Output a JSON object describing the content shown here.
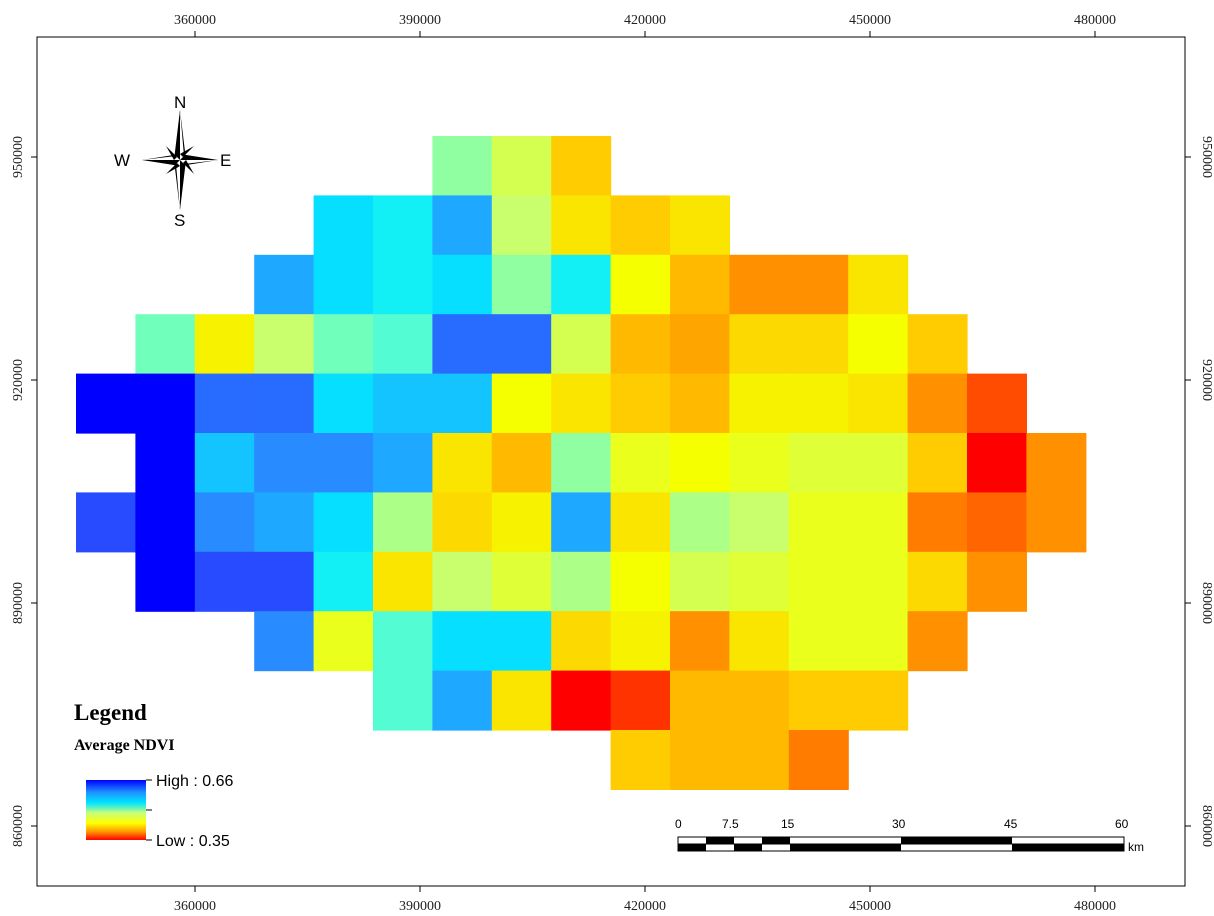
{
  "map": {
    "x_ticks": [
      "360000",
      "390000",
      "420000",
      "450000",
      "480000"
    ],
    "y_ticks": [
      "950000",
      "920000",
      "890000",
      "860000"
    ],
    "grid": {
      "note_cell_values": "NDVI estimated from color ramp (0.35 low/red to 0.66 high/blue); null = no data",
      "rows": [
        [
          null,
          null,
          null,
          null,
          null,
          null,
          0.54,
          0.51,
          0.44,
          null,
          null,
          null,
          null,
          null,
          null,
          null,
          null
        ],
        [
          null,
          null,
          null,
          null,
          0.59,
          0.58,
          0.61,
          0.52,
          0.46,
          0.44,
          0.46,
          null,
          null,
          null,
          null,
          null,
          null
        ],
        [
          null,
          null,
          null,
          0.61,
          0.59,
          0.58,
          0.59,
          0.54,
          0.58,
          0.48,
          0.43,
          0.41,
          0.41,
          0.46,
          null,
          null,
          null
        ],
        [
          null,
          0.55,
          0.47,
          0.52,
          0.55,
          0.56,
          0.63,
          0.63,
          0.51,
          0.43,
          0.42,
          0.45,
          0.45,
          0.48,
          0.44,
          null,
          null
        ],
        [
          0.66,
          0.66,
          0.63,
          0.63,
          0.59,
          0.6,
          0.6,
          0.48,
          0.46,
          0.44,
          0.43,
          0.47,
          0.47,
          0.46,
          0.41,
          0.38,
          null
        ],
        [
          null,
          0.66,
          0.6,
          0.62,
          0.62,
          0.61,
          0.46,
          0.43,
          0.54,
          0.49,
          0.48,
          0.49,
          0.5,
          0.5,
          0.44,
          0.35,
          0.41
        ],
        [
          0.64,
          0.66,
          0.62,
          0.61,
          0.59,
          0.53,
          0.45,
          0.47,
          0.61,
          0.46,
          0.53,
          0.52,
          0.49,
          0.49,
          0.4,
          0.39,
          0.41
        ],
        [
          null,
          0.66,
          0.64,
          0.64,
          0.58,
          0.46,
          0.52,
          0.5,
          0.53,
          0.48,
          0.51,
          0.5,
          0.49,
          0.49,
          0.45,
          0.41,
          null
        ],
        [
          null,
          null,
          null,
          0.62,
          0.49,
          0.56,
          0.59,
          0.59,
          0.45,
          0.47,
          0.41,
          0.46,
          0.49,
          0.49,
          0.41,
          null,
          null
        ],
        [
          null,
          null,
          null,
          null,
          null,
          0.56,
          0.61,
          0.46,
          0.35,
          0.37,
          0.43,
          0.43,
          0.44,
          0.44,
          null,
          null,
          null
        ],
        [
          null,
          null,
          null,
          null,
          null,
          null,
          null,
          null,
          null,
          0.44,
          0.43,
          0.43,
          0.4,
          null,
          null,
          null,
          null
        ]
      ]
    }
  },
  "compass": {
    "n": "N",
    "s": "S",
    "e": "E",
    "w": "W"
  },
  "legend": {
    "title": "Legend",
    "subtitle": "Average NDVI",
    "high_label": "High : 0.66",
    "low_label": "Low : 0.35"
  },
  "scalebar": {
    "labels": [
      "0",
      "7.5",
      "15",
      "30",
      "45",
      "60"
    ],
    "unit": "km"
  }
}
